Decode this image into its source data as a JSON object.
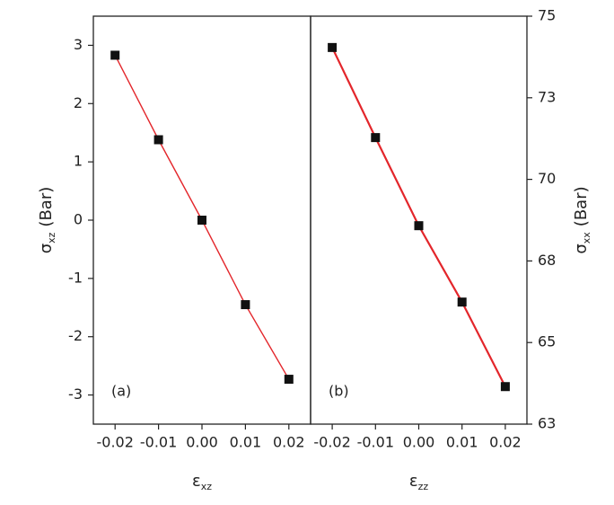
{
  "chart_data": [
    {
      "type": "line",
      "panel_label": "(a)",
      "x_label": {
        "symbol": "ε",
        "subscript": "xz"
      },
      "y_label": {
        "symbol": "σ",
        "subscript": "xz",
        "unit": "(Bar)"
      },
      "y_axis_side": "left",
      "x": [
        -0.02,
        -0.01,
        0,
        0.01,
        0.02
      ],
      "xlim": [
        -0.025,
        0.025
      ],
      "xticks": [
        -0.02,
        -0.01,
        {
          "value": 0,
          "label": "0.00"
        },
        0.01,
        0.02
      ],
      "ylim": [
        -3.5,
        3.5
      ],
      "yticks": [
        -3,
        -2,
        -1,
        0,
        1,
        2,
        3
      ],
      "series": [
        {
          "color": "#111111",
          "line_color": "#e3262b",
          "values": [
            2.83,
            1.38,
            0,
            -1.45,
            -2.73
          ]
        }
      ]
    },
    {
      "type": "line",
      "panel_label": "(b)",
      "x_label": {
        "symbol": "ε",
        "subscript": "zz"
      },
      "y_label": {
        "symbol": "σ",
        "subscript": "xx",
        "unit": "(Bar)"
      },
      "y_axis_side": "right",
      "x": [
        -0.02,
        -0.01,
        0,
        0.01,
        0.02
      ],
      "xlim": [
        -0.025,
        0.025
      ],
      "xticks": [
        -0.02,
        -0.01,
        {
          "value": 0,
          "label": "0.00"
        },
        0.01,
        0.02
      ],
      "ylim": [
        62.5,
        75
      ],
      "yticks": [
        {
          "value": 62.5,
          "label": "63"
        },
        65,
        {
          "value": 67.5,
          "label": "68"
        },
        70,
        {
          "value": 72.5,
          "label": "73"
        },
        75
      ],
      "series": [
        {
          "color": "#111111",
          "line_color": "#e3262b",
          "values": [
            74.04,
            71.28,
            68.58,
            66.24,
            63.65
          ]
        }
      ]
    }
  ]
}
